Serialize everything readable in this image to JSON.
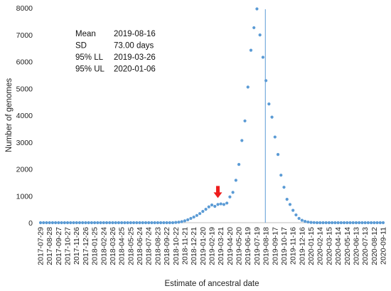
{
  "chart_data": {
    "type": "scatter",
    "xlabel": "Estimate of ancestral date",
    "ylabel": "Number of genomes",
    "ylim": [
      0,
      8000
    ],
    "yticks": [
      0,
      1000,
      2000,
      3000,
      4000,
      5000,
      6000,
      7000,
      8000
    ],
    "grid": false,
    "x_tick_labels": [
      "2017-07-29",
      "2017-08-28",
      "2017-09-27",
      "2017-10-27",
      "2017-11-26",
      "2017-12-26",
      "2018-01-25",
      "2018-02-24",
      "2018-03-26",
      "2018-04-25",
      "2018-05-25",
      "2018-06-24",
      "2018-07-24",
      "2018-08-23",
      "2018-09-22",
      "2018-10-22",
      "2018-11-21",
      "2018-12-21",
      "2019-01-20",
      "2019-02-19",
      "2019-03-21",
      "2019-04-20",
      "2019-05-20",
      "2019-06-19",
      "2019-07-19",
      "2019-08-18",
      "2019-09-17",
      "2019-10-17",
      "2019-11-16",
      "2019-12-16",
      "2020-01-15",
      "2020-02-14",
      "2020-03-15",
      "2020-04-14",
      "2020-05-14",
      "2020-06-13",
      "2020-07-13",
      "2020-08-12",
      "2020-09-11"
    ],
    "series": [
      {
        "color": "#5b9bd5",
        "points": [
          [
            "2017-07-29",
            0
          ],
          [
            "2017-08-08",
            0
          ],
          [
            "2017-08-18",
            0
          ],
          [
            "2017-08-28",
            0
          ],
          [
            "2017-09-07",
            0
          ],
          [
            "2017-09-17",
            0
          ],
          [
            "2017-09-27",
            0
          ],
          [
            "2017-10-07",
            0
          ],
          [
            "2017-10-17",
            0
          ],
          [
            "2017-10-27",
            0
          ],
          [
            "2017-11-06",
            0
          ],
          [
            "2017-11-16",
            0
          ],
          [
            "2017-11-26",
            0
          ],
          [
            "2017-12-06",
            0
          ],
          [
            "2017-12-16",
            0
          ],
          [
            "2017-12-26",
            0
          ],
          [
            "2018-01-05",
            0
          ],
          [
            "2018-01-15",
            0
          ],
          [
            "2018-01-25",
            0
          ],
          [
            "2018-02-04",
            0
          ],
          [
            "2018-02-14",
            0
          ],
          [
            "2018-02-24",
            0
          ],
          [
            "2018-03-06",
            0
          ],
          [
            "2018-03-16",
            0
          ],
          [
            "2018-03-26",
            0
          ],
          [
            "2018-04-05",
            0
          ],
          [
            "2018-04-15",
            0
          ],
          [
            "2018-04-25",
            0
          ],
          [
            "2018-05-05",
            0
          ],
          [
            "2018-05-15",
            0
          ],
          [
            "2018-05-25",
            0
          ],
          [
            "2018-06-04",
            0
          ],
          [
            "2018-06-14",
            0
          ],
          [
            "2018-06-24",
            0
          ],
          [
            "2018-07-04",
            0
          ],
          [
            "2018-07-14",
            0
          ],
          [
            "2018-07-24",
            0
          ],
          [
            "2018-08-03",
            0
          ],
          [
            "2018-08-13",
            0
          ],
          [
            "2018-08-23",
            0
          ],
          [
            "2018-09-02",
            0
          ],
          [
            "2018-09-12",
            0
          ],
          [
            "2018-09-22",
            0
          ],
          [
            "2018-10-02",
            0
          ],
          [
            "2018-10-12",
            0
          ],
          [
            "2018-10-22",
            10
          ],
          [
            "2018-11-01",
            20
          ],
          [
            "2018-11-11",
            40
          ],
          [
            "2018-11-21",
            70
          ],
          [
            "2018-12-01",
            110
          ],
          [
            "2018-12-11",
            160
          ],
          [
            "2018-12-21",
            210
          ],
          [
            "2018-12-31",
            270
          ],
          [
            "2019-01-10",
            340
          ],
          [
            "2019-01-20",
            420
          ],
          [
            "2019-01-30",
            500
          ],
          [
            "2019-02-09",
            590
          ],
          [
            "2019-02-19",
            660
          ],
          [
            "2019-03-01",
            610
          ],
          [
            "2019-03-11",
            680
          ],
          [
            "2019-03-21",
            700
          ],
          [
            "2019-03-31",
            680
          ],
          [
            "2019-04-10",
            730
          ],
          [
            "2019-04-20",
            960
          ],
          [
            "2019-04-30",
            1130
          ],
          [
            "2019-05-10",
            1580
          ],
          [
            "2019-05-20",
            2170
          ],
          [
            "2019-05-30",
            3060
          ],
          [
            "2019-06-09",
            3790
          ],
          [
            "2019-06-19",
            5050
          ],
          [
            "2019-06-29",
            6420
          ],
          [
            "2019-07-09",
            7260
          ],
          [
            "2019-07-19",
            7960
          ],
          [
            "2019-07-29",
            6990
          ],
          [
            "2019-08-08",
            6160
          ],
          [
            "2019-08-18",
            5290
          ],
          [
            "2019-08-28",
            4420
          ],
          [
            "2019-09-07",
            3930
          ],
          [
            "2019-09-17",
            3190
          ],
          [
            "2019-09-27",
            2540
          ],
          [
            "2019-10-07",
            1770
          ],
          [
            "2019-10-17",
            1320
          ],
          [
            "2019-10-27",
            870
          ],
          [
            "2019-11-06",
            680
          ],
          [
            "2019-11-16",
            460
          ],
          [
            "2019-11-26",
            290
          ],
          [
            "2019-12-06",
            160
          ],
          [
            "2019-12-16",
            90
          ],
          [
            "2019-12-26",
            50
          ],
          [
            "2020-01-05",
            25
          ],
          [
            "2020-01-15",
            10
          ],
          [
            "2020-01-25",
            5
          ],
          [
            "2020-02-04",
            0
          ],
          [
            "2020-02-14",
            0
          ],
          [
            "2020-02-24",
            0
          ],
          [
            "2020-03-05",
            0
          ],
          [
            "2020-03-15",
            0
          ],
          [
            "2020-03-25",
            0
          ],
          [
            "2020-04-04",
            0
          ],
          [
            "2020-04-14",
            0
          ],
          [
            "2020-04-24",
            0
          ],
          [
            "2020-05-04",
            0
          ],
          [
            "2020-05-14",
            0
          ],
          [
            "2020-05-24",
            0
          ],
          [
            "2020-06-03",
            0
          ],
          [
            "2020-06-13",
            0
          ],
          [
            "2020-06-23",
            0
          ],
          [
            "2020-07-03",
            0
          ],
          [
            "2020-07-13",
            0
          ],
          [
            "2020-07-23",
            0
          ],
          [
            "2020-08-02",
            0
          ],
          [
            "2020-08-12",
            0
          ],
          [
            "2020-08-22",
            0
          ],
          [
            "2020-09-01",
            0
          ],
          [
            "2020-09-11",
            0
          ]
        ]
      }
    ],
    "vertical_line_at": "2019-08-16",
    "vertical_line_color": "#5b9bd5",
    "marker_arrow": {
      "at": "2019-03-11",
      "value": 680,
      "color": "#ee1c1c",
      "icon": "down-arrow-icon"
    },
    "stats_box": [
      {
        "label": "Mean",
        "value": "2019-08-16"
      },
      {
        "label": "SD",
        "value": "73.00 days"
      },
      {
        "label": "95% LL",
        "value": "2019-03-26"
      },
      {
        "label": "95% UL",
        "value": "2020-01-06"
      }
    ]
  }
}
